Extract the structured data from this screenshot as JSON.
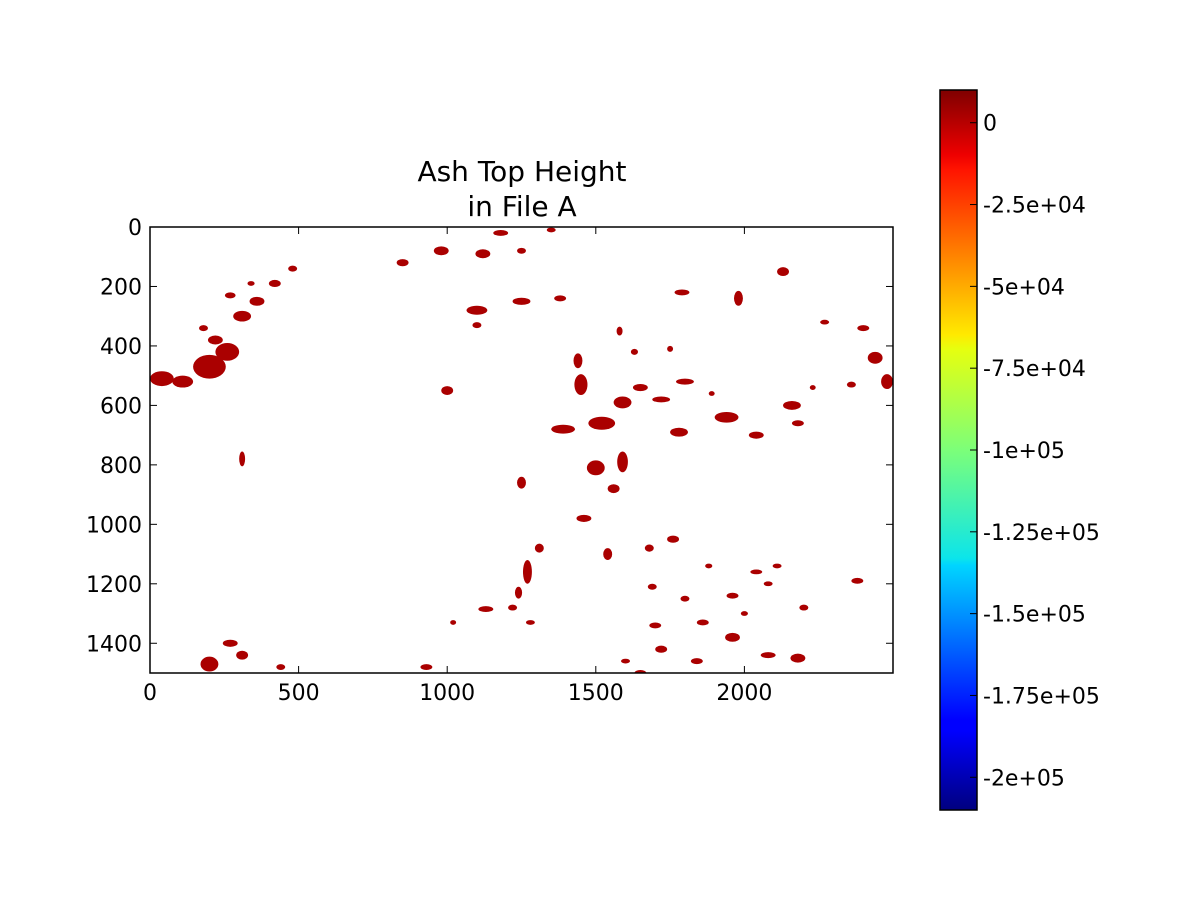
{
  "chart_data": {
    "type": "heatmap",
    "title": "Ash Top Height\nin File A",
    "title_lines": [
      "Ash Top Height",
      "in File A"
    ],
    "x_range": [
      0,
      2500
    ],
    "y_range": [
      0,
      1500
    ],
    "y_inverted": true,
    "x_ticks": [
      0,
      500,
      1000,
      1500,
      2000
    ],
    "x_tick_labels": [
      "0",
      "500",
      "1000",
      "1500",
      "2000"
    ],
    "y_ticks": [
      0,
      200,
      400,
      600,
      800,
      1000,
      1200,
      1400
    ],
    "y_tick_labels": [
      "0",
      "200",
      "400",
      "600",
      "800",
      "1000",
      "1200",
      "1400"
    ],
    "grid": false,
    "cell_value_shown": 0,
    "cell_color": "#aa0000",
    "background_color": "#ffffff",
    "colorbar": {
      "colormap": "jet",
      "range": [
        -210000,
        10000
      ],
      "orientation": "vertical",
      "placement": "right",
      "ticks": [
        0,
        -25000,
        -50000,
        -75000,
        -100000,
        -125000,
        -150000,
        -175000,
        -200000
      ],
      "tick_labels": [
        "0",
        "-2.5e+04",
        "-5e+04",
        "-7.5e+04",
        "-1e+05",
        "-1.25e+05",
        "-1.5e+05",
        "-1.75e+05",
        "-2e+05"
      ]
    },
    "blobs": [
      {
        "x": 40,
        "y": 510,
        "rx": 40,
        "ry": 25
      },
      {
        "x": 110,
        "y": 520,
        "rx": 35,
        "ry": 20
      },
      {
        "x": 200,
        "y": 470,
        "rx": 55,
        "ry": 40
      },
      {
        "x": 260,
        "y": 420,
        "rx": 40,
        "ry": 30
      },
      {
        "x": 220,
        "y": 380,
        "rx": 25,
        "ry": 15
      },
      {
        "x": 310,
        "y": 300,
        "rx": 30,
        "ry": 18
      },
      {
        "x": 360,
        "y": 250,
        "rx": 25,
        "ry": 15
      },
      {
        "x": 420,
        "y": 190,
        "rx": 20,
        "ry": 12
      },
      {
        "x": 480,
        "y": 140,
        "rx": 15,
        "ry": 10
      },
      {
        "x": 180,
        "y": 340,
        "rx": 15,
        "ry": 10
      },
      {
        "x": 270,
        "y": 230,
        "rx": 18,
        "ry": 10
      },
      {
        "x": 340,
        "y": 190,
        "rx": 12,
        "ry": 8
      },
      {
        "x": 850,
        "y": 120,
        "rx": 20,
        "ry": 12
      },
      {
        "x": 980,
        "y": 80,
        "rx": 25,
        "ry": 15
      },
      {
        "x": 1120,
        "y": 90,
        "rx": 25,
        "ry": 15
      },
      {
        "x": 1180,
        "y": 20,
        "rx": 25,
        "ry": 10
      },
      {
        "x": 1250,
        "y": 80,
        "rx": 15,
        "ry": 10
      },
      {
        "x": 1350,
        "y": 10,
        "rx": 15,
        "ry": 8
      },
      {
        "x": 1100,
        "y": 280,
        "rx": 35,
        "ry": 15
      },
      {
        "x": 1250,
        "y": 250,
        "rx": 30,
        "ry": 12
      },
      {
        "x": 1380,
        "y": 240,
        "rx": 20,
        "ry": 10
      },
      {
        "x": 1100,
        "y": 330,
        "rx": 15,
        "ry": 10
      },
      {
        "x": 1440,
        "y": 450,
        "rx": 15,
        "ry": 25
      },
      {
        "x": 1450,
        "y": 530,
        "rx": 22,
        "ry": 35
      },
      {
        "x": 1590,
        "y": 590,
        "rx": 30,
        "ry": 20
      },
      {
        "x": 1520,
        "y": 660,
        "rx": 45,
        "ry": 22
      },
      {
        "x": 1390,
        "y": 680,
        "rx": 40,
        "ry": 15
      },
      {
        "x": 1650,
        "y": 540,
        "rx": 25,
        "ry": 12
      },
      {
        "x": 1720,
        "y": 580,
        "rx": 30,
        "ry": 10
      },
      {
        "x": 1800,
        "y": 520,
        "rx": 30,
        "ry": 10
      },
      {
        "x": 1780,
        "y": 690,
        "rx": 30,
        "ry": 15
      },
      {
        "x": 1940,
        "y": 640,
        "rx": 40,
        "ry": 18
      },
      {
        "x": 2040,
        "y": 700,
        "rx": 25,
        "ry": 12
      },
      {
        "x": 2160,
        "y": 600,
        "rx": 30,
        "ry": 15
      },
      {
        "x": 2180,
        "y": 660,
        "rx": 20,
        "ry": 10
      },
      {
        "x": 1500,
        "y": 810,
        "rx": 30,
        "ry": 25
      },
      {
        "x": 1590,
        "y": 790,
        "rx": 18,
        "ry": 35
      },
      {
        "x": 1560,
        "y": 880,
        "rx": 20,
        "ry": 15
      },
      {
        "x": 1250,
        "y": 860,
        "rx": 15,
        "ry": 20
      },
      {
        "x": 1790,
        "y": 220,
        "rx": 25,
        "ry": 10
      },
      {
        "x": 1980,
        "y": 240,
        "rx": 15,
        "ry": 25
      },
      {
        "x": 2130,
        "y": 150,
        "rx": 20,
        "ry": 15
      },
      {
        "x": 2270,
        "y": 320,
        "rx": 15,
        "ry": 8
      },
      {
        "x": 2400,
        "y": 340,
        "rx": 20,
        "ry": 10
      },
      {
        "x": 2440,
        "y": 440,
        "rx": 25,
        "ry": 20
      },
      {
        "x": 2480,
        "y": 520,
        "rx": 20,
        "ry": 25
      },
      {
        "x": 2360,
        "y": 530,
        "rx": 15,
        "ry": 10
      },
      {
        "x": 1580,
        "y": 350,
        "rx": 10,
        "ry": 15
      },
      {
        "x": 1630,
        "y": 420,
        "rx": 12,
        "ry": 10
      },
      {
        "x": 1750,
        "y": 410,
        "rx": 10,
        "ry": 10
      },
      {
        "x": 310,
        "y": 780,
        "rx": 10,
        "ry": 25
      },
      {
        "x": 1270,
        "y": 1160,
        "rx": 15,
        "ry": 40
      },
      {
        "x": 1240,
        "y": 1230,
        "rx": 12,
        "ry": 20
      },
      {
        "x": 1310,
        "y": 1080,
        "rx": 15,
        "ry": 15
      },
      {
        "x": 1130,
        "y": 1285,
        "rx": 25,
        "ry": 10
      },
      {
        "x": 1220,
        "y": 1280,
        "rx": 15,
        "ry": 10
      },
      {
        "x": 1280,
        "y": 1330,
        "rx": 15,
        "ry": 8
      },
      {
        "x": 1700,
        "y": 1340,
        "rx": 20,
        "ry": 10
      },
      {
        "x": 1860,
        "y": 1330,
        "rx": 20,
        "ry": 10
      },
      {
        "x": 1960,
        "y": 1380,
        "rx": 25,
        "ry": 15
      },
      {
        "x": 2080,
        "y": 1440,
        "rx": 25,
        "ry": 10
      },
      {
        "x": 2180,
        "y": 1450,
        "rx": 25,
        "ry": 15
      },
      {
        "x": 1720,
        "y": 1420,
        "rx": 20,
        "ry": 12
      },
      {
        "x": 1600,
        "y": 1460,
        "rx": 15,
        "ry": 8
      },
      {
        "x": 1840,
        "y": 1460,
        "rx": 20,
        "ry": 10
      },
      {
        "x": 1650,
        "y": 1500,
        "rx": 20,
        "ry": 10
      },
      {
        "x": 1800,
        "y": 1250,
        "rx": 15,
        "ry": 10
      },
      {
        "x": 1960,
        "y": 1240,
        "rx": 20,
        "ry": 10
      },
      {
        "x": 2080,
        "y": 1200,
        "rx": 15,
        "ry": 8
      },
      {
        "x": 2200,
        "y": 1280,
        "rx": 15,
        "ry": 10
      },
      {
        "x": 2380,
        "y": 1190,
        "rx": 20,
        "ry": 10
      },
      {
        "x": 1680,
        "y": 1080,
        "rx": 15,
        "ry": 12
      },
      {
        "x": 1760,
        "y": 1050,
        "rx": 20,
        "ry": 12
      },
      {
        "x": 2040,
        "y": 1160,
        "rx": 20,
        "ry": 8
      },
      {
        "x": 2110,
        "y": 1140,
        "rx": 15,
        "ry": 8
      },
      {
        "x": 1880,
        "y": 1140,
        "rx": 12,
        "ry": 8
      },
      {
        "x": 1690,
        "y": 1210,
        "rx": 15,
        "ry": 10
      },
      {
        "x": 1020,
        "y": 1330,
        "rx": 10,
        "ry": 8
      },
      {
        "x": 200,
        "y": 1470,
        "rx": 30,
        "ry": 25
      },
      {
        "x": 270,
        "y": 1400,
        "rx": 25,
        "ry": 12
      },
      {
        "x": 310,
        "y": 1440,
        "rx": 20,
        "ry": 15
      },
      {
        "x": 440,
        "y": 1480,
        "rx": 15,
        "ry": 10
      },
      {
        "x": 1000,
        "y": 550,
        "rx": 20,
        "ry": 15
      },
      {
        "x": 930,
        "y": 1480,
        "rx": 20,
        "ry": 10
      },
      {
        "x": 1460,
        "y": 980,
        "rx": 25,
        "ry": 12
      },
      {
        "x": 1540,
        "y": 1100,
        "rx": 15,
        "ry": 20
      },
      {
        "x": 2000,
        "y": 1300,
        "rx": 12,
        "ry": 8
      },
      {
        "x": 1890,
        "y": 560,
        "rx": 10,
        "ry": 8
      },
      {
        "x": 2230,
        "y": 540,
        "rx": 10,
        "ry": 8
      }
    ]
  }
}
